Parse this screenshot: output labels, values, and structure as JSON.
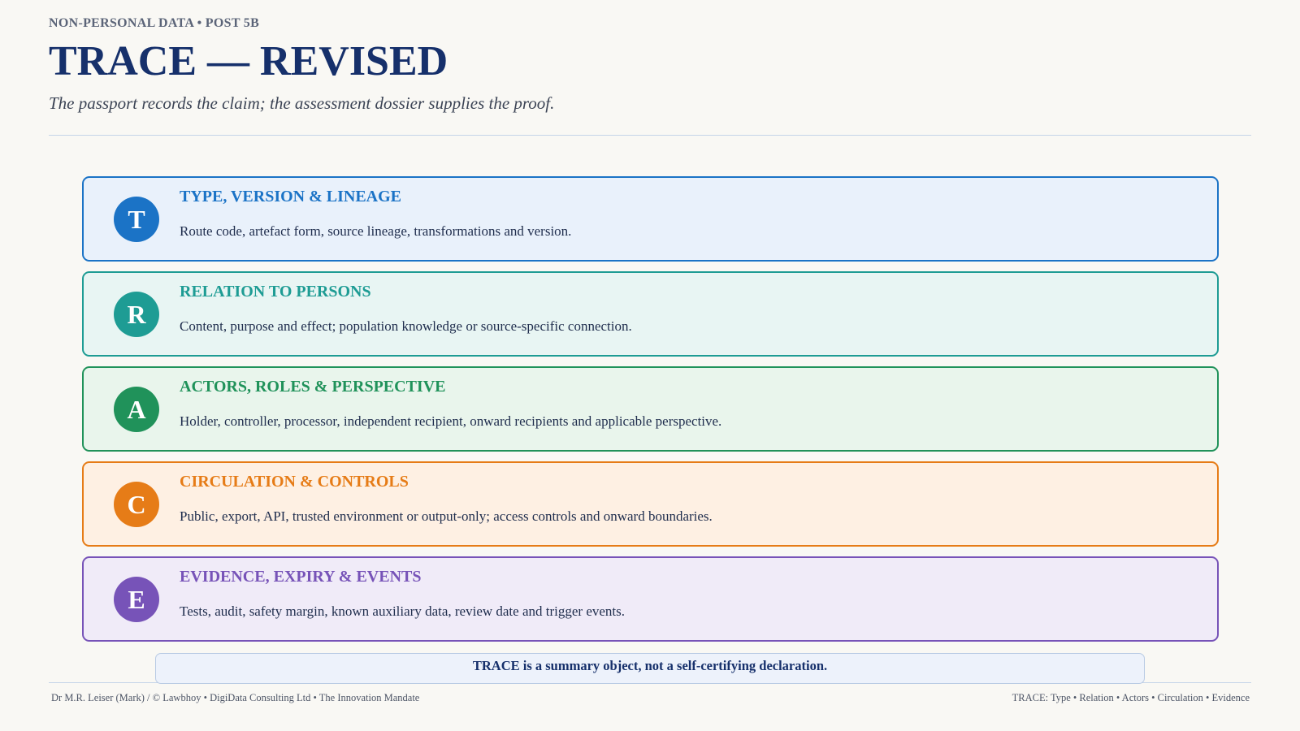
{
  "header": {
    "kicker": "NON-PERSONAL DATA • POST 5B",
    "title": "TRACE — REVISED",
    "subtitle": "The passport records the claim; the assessment dossier supplies the proof."
  },
  "cards": [
    {
      "letter": "T",
      "heading": "TYPE, VERSION & LINEAGE",
      "text": "Route code, artefact form, source lineage, transformations and version.",
      "color": "#1b73c6",
      "background": "#e9f1fb"
    },
    {
      "letter": "R",
      "heading": "RELATION TO PERSONS",
      "text": "Content, purpose and effect; population knowledge or source-specific connection.",
      "color": "#1e9c94",
      "background": "#e8f5f3"
    },
    {
      "letter": "A",
      "heading": "ACTORS, ROLES & PERSPECTIVE",
      "text": "Holder, controller, processor, independent recipient, onward recipients and applicable perspective.",
      "color": "#20925a",
      "background": "#e9f5ec"
    },
    {
      "letter": "C",
      "heading": "CIRCULATION & CONTROLS",
      "text": "Public, export, API, trusted environment or output-only; access controls and onward boundaries.",
      "color": "#e67c17",
      "background": "#fef0e3"
    },
    {
      "letter": "E",
      "heading": "EVIDENCE, EXPIRY & EVENTS",
      "text": "Tests, audit, safety margin, known auxiliary data, review date and trigger events.",
      "color": "#7753b8",
      "background": "#f0ebf8"
    }
  ],
  "note": "TRACE is a summary object, not a self-certifying declaration.",
  "footer": {
    "left": "Dr M.R. Leiser (Mark) / © Lawbhoy • DigiData Consulting Ltd • The Innovation Mandate",
    "right": "TRACE: Type • Relation • Actors • Circulation • Evidence"
  }
}
